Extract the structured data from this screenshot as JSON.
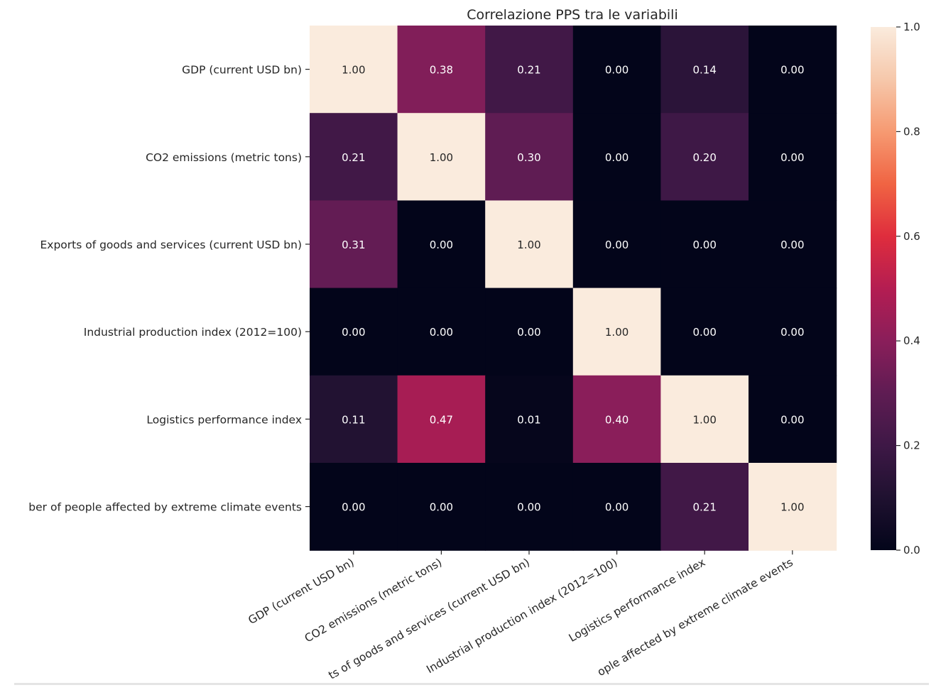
{
  "chart_data": {
    "type": "heatmap",
    "title": "Correlazione PPS tra le variabili",
    "row_labels": [
      "GDP (current USD bn)",
      "CO2 emissions (metric tons)",
      "Exports of goods and services (current USD bn)",
      "Industrial production index (2012=100)",
      "Logistics performance index",
      "ber of people affected by extreme climate events"
    ],
    "col_labels": [
      "GDP (current USD bn)",
      "CO2 emissions (metric tons)",
      "ts of goods and services (current USD bn)",
      "Industrial production index (2012=100)",
      "Logistics performance index",
      "ople affected by extreme climate events"
    ],
    "values": [
      [
        1.0,
        0.38,
        0.21,
        0.0,
        0.14,
        0.0
      ],
      [
        0.21,
        1.0,
        0.3,
        0.0,
        0.2,
        0.0
      ],
      [
        0.31,
        0.0,
        1.0,
        0.0,
        0.0,
        0.0
      ],
      [
        0.0,
        0.0,
        0.0,
        1.0,
        0.0,
        0.0
      ],
      [
        0.11,
        0.47,
        0.01,
        0.4,
        1.0,
        0.0
      ],
      [
        0.0,
        0.0,
        0.0,
        0.0,
        0.21,
        1.0
      ]
    ],
    "value_format": "2 decimals",
    "colormap": "rocket",
    "colorbar": {
      "range": [
        0.0,
        1.0
      ],
      "ticks": [
        "0.0",
        "0.2",
        "0.4",
        "0.6",
        "0.8",
        "1.0"
      ]
    },
    "annotation_colors": {
      "on_dark": "#ffffff",
      "on_light": "#262626"
    }
  }
}
